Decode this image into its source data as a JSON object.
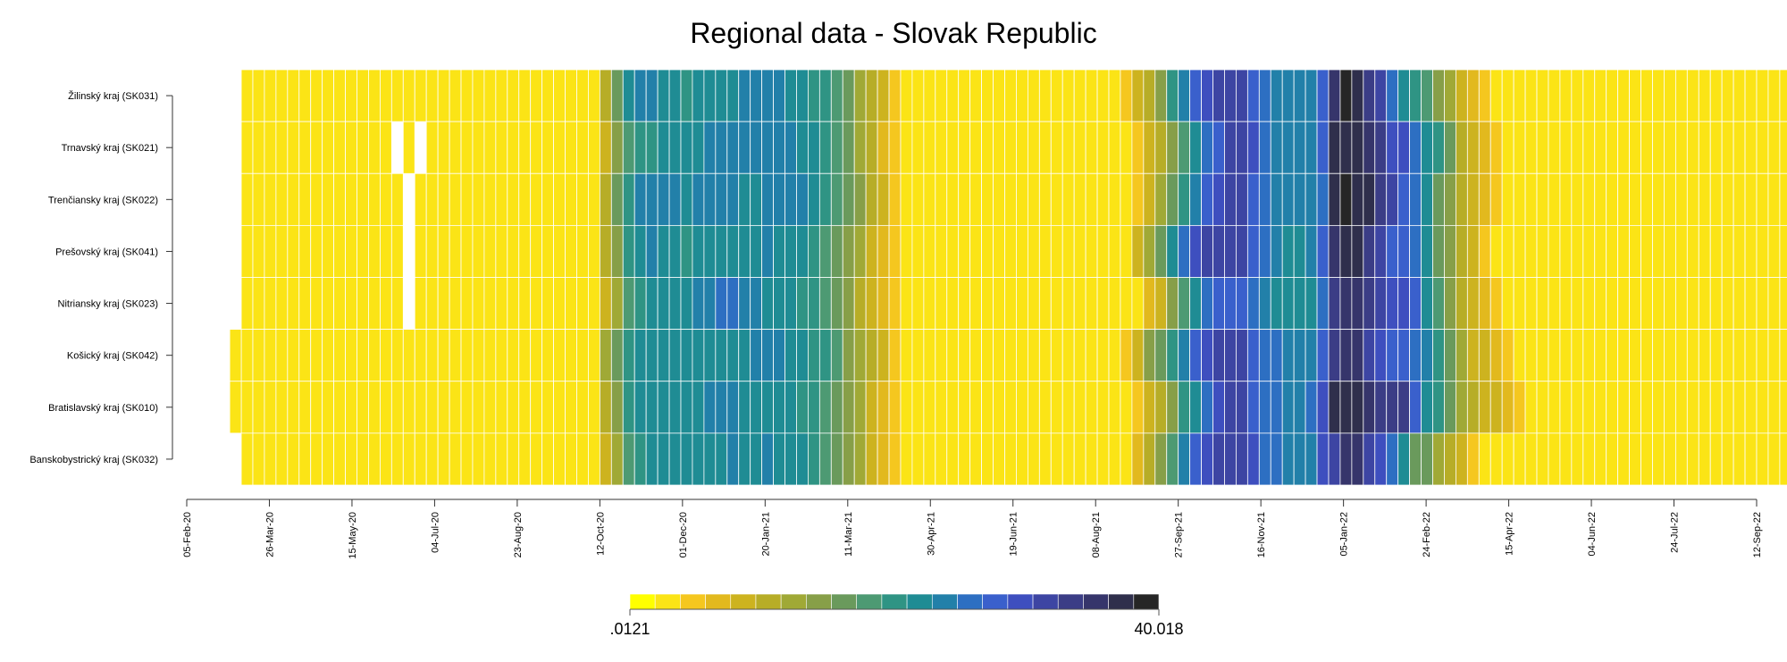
{
  "chart_data": {
    "type": "heatmap",
    "title": "Regional data - Slovak Republic",
    "xlabel": "",
    "ylabel": "",
    "grid": false,
    "legend_position": "bottom",
    "rows": [
      "Žilinský kraj (SK031)",
      "Trnavský kraj (SK021)",
      "Trenčiansky kraj (SK022)",
      "Prešovský kraj (SK041)",
      "Nitriansky kraj (SK023)",
      "Košický kraj (SK042)",
      "Bratislavský kraj (SK010)",
      "Banskobystrický kraj (SK032)"
    ],
    "x_tick_labels": [
      "05-Feb-20",
      "26-Mar-20",
      "15-May-20",
      "04-Jul-20",
      "23-Aug-20",
      "12-Oct-20",
      "01-Dec-20",
      "20-Jan-21",
      "11-Mar-21",
      "30-Apr-21",
      "19-Jun-21",
      "08-Aug-21",
      "27-Sep-21",
      "16-Nov-21",
      "05-Jan-22",
      "24-Feb-22",
      "15-Apr-22",
      "04-Jun-22",
      "24-Jul-22",
      "12-Sep-22"
    ],
    "x_start": "2020-02-05",
    "x_end": "2022-09-12",
    "cell_width_days": 7,
    "first_week_start": "2020-03-09",
    "first_week_start_by_row": {
      "Košický kraj (SK042)": "2020-03-02",
      "Bratislavský kraj (SK010)": "2020-03-02"
    },
    "missing_cells": [
      {
        "row": "Trnavský kraj (SK021)",
        "week_start": "2020-06-08"
      },
      {
        "row": "Trnavský kraj (SK021)",
        "week_start": "2020-06-22"
      },
      {
        "row": "Trenčiansky kraj (SK022)",
        "week_start": "2020-06-15"
      },
      {
        "row": "Prešovský kraj (SK041)",
        "week_start": "2020-06-15"
      },
      {
        "row": "Nitriansky kraj (SK023)",
        "week_start": "2020-06-15"
      }
    ],
    "color_scale": {
      "min_label": ".0121",
      "max_label": "40.018",
      "min": 0.0121,
      "max": 40.018,
      "colors": [
        "#ffff00",
        "#fbe416",
        "#f5c71f",
        "#e2b91e",
        "#cdb31f",
        "#b7ad27",
        "#a0a936",
        "#879f48",
        "#6a9a5c",
        "#4d9a73",
        "#2f9484",
        "#1f8c94",
        "#2280a9",
        "#2d6fc2",
        "#3a60cc",
        "#3e4fbf",
        "#3d45a3",
        "#3b3d86",
        "#36356b",
        "#2f2f4c",
        "#262626"
      ]
    },
    "values_by_week": [
      [
        0.02,
        0.02,
        0.02,
        0.02,
        0.02,
        0.02,
        0.02,
        0.02
      ],
      [
        0.02,
        0.02,
        0.02,
        0.02,
        0.02,
        0.02,
        0.02,
        0.02
      ],
      [
        0.02,
        0.02,
        0.02,
        0.02,
        0.02,
        0.02,
        0.02,
        0.02
      ],
      [
        0.02,
        0.02,
        0.02,
        0.02,
        0.02,
        0.02,
        0.02,
        0.02
      ],
      [
        0.02,
        0.02,
        0.02,
        0.02,
        0.02,
        0.02,
        0.02,
        0.02
      ],
      [
        0.02,
        0.02,
        0.02,
        0.02,
        0.02,
        0.02,
        0.02,
        0.02
      ],
      [
        0.02,
        0.02,
        0.02,
        0.02,
        0.02,
        0.02,
        0.02,
        0.02
      ],
      [
        0.02,
        0.02,
        0.02,
        0.02,
        0.02,
        0.02,
        0.02,
        0.02
      ],
      [
        0.02,
        0.02,
        0.02,
        0.02,
        0.02,
        0.02,
        0.02,
        0.02
      ],
      [
        0.02,
        0.02,
        0.02,
        0.02,
        0.02,
        0.02,
        0.02,
        0.02
      ],
      [
        0.02,
        0.02,
        0.02,
        0.02,
        0.02,
        0.02,
        0.02,
        0.02
      ],
      [
        0.02,
        0.02,
        0.02,
        0.02,
        0.02,
        0.02,
        0.02,
        0.02
      ],
      [
        0.02,
        0.02,
        0.02,
        0.02,
        0.02,
        0.02,
        0.02,
        0.02
      ],
      [
        0.02,
        0.02,
        0.02,
        0.02,
        0.02,
        0.02,
        0.02,
        0.02
      ],
      [
        0.02,
        0.02,
        0.02,
        0.02,
        0.02,
        0.02,
        0.02,
        0.02
      ],
      [
        0.02,
        0.02,
        0.02,
        0.02,
        0.02,
        0.02,
        0.02,
        0.02
      ],
      [
        0.02,
        0.02,
        0.02,
        0.02,
        0.02,
        0.02,
        0.02,
        0.02
      ],
      [
        0.02,
        0.02,
        0.02,
        0.02,
        0.02,
        0.02,
        0.02,
        0.02
      ],
      [
        0.02,
        0.02,
        0.02,
        0.02,
        0.02,
        0.02,
        0.02,
        0.02
      ],
      [
        0.02,
        0.02,
        0.02,
        0.02,
        0.02,
        0.02,
        0.02,
        0.02
      ],
      [
        0.02,
        0.02,
        0.02,
        0.02,
        0.02,
        0.02,
        0.02,
        0.02
      ],
      [
        0.02,
        0.02,
        0.02,
        0.02,
        0.02,
        0.02,
        0.02,
        0.02
      ],
      [
        0.02,
        0.02,
        0.02,
        0.02,
        0.02,
        0.02,
        0.02,
        0.02
      ],
      [
        0.02,
        0.02,
        0.02,
        0.02,
        0.02,
        0.02,
        0.02,
        0.02
      ],
      [
        0.02,
        0.02,
        0.02,
        0.02,
        0.02,
        0.02,
        0.02,
        0.02
      ],
      [
        0.02,
        0.02,
        0.02,
        0.02,
        0.02,
        0.02,
        0.02,
        0.02
      ],
      [
        0.02,
        0.02,
        0.02,
        0.02,
        0.02,
        0.02,
        0.02,
        0.02
      ],
      [
        0.02,
        0.02,
        0.02,
        0.02,
        0.02,
        0.02,
        0.02,
        0.02
      ],
      [
        0.02,
        0.02,
        0.02,
        0.02,
        0.02,
        0.02,
        0.02,
        0.02
      ],
      [
        0.02,
        0.02,
        0.02,
        0.02,
        0.02,
        0.02,
        0.02,
        0.02
      ],
      [
        0.02,
        0.02,
        0.02,
        0.02,
        0.02,
        0.02,
        0.02,
        0.02
      ],
      [
        0.09,
        0.06,
        0.11,
        0.11,
        0.06,
        0.13,
        0.08,
        0.06
      ],
      [
        0.32,
        0.17,
        0.29,
        0.25,
        0.13,
        0.26,
        0.19,
        0.16
      ],
      [
        1.08,
        0.39,
        0.72,
        0.6,
        0.43,
        0.65,
        0.6,
        0.51
      ],
      [
        1.88,
        0.7,
        1.29,
        1.24,
        0.67,
        1.0,
        0.96,
        0.82
      ],
      [
        1.8,
        0.85,
        1.39,
        1.35,
        0.87,
        1.23,
        1.05,
        0.91
      ],
      [
        1.24,
        1.03,
        1.35,
        1.12,
        1.0,
        1.24,
        1.0,
        0.99
      ],
      [
        0.98,
        1.1,
        1.31,
        1.02,
        0.89,
        1.16,
        1.1,
        1.12
      ],
      [
        0.82,
        1.05,
        1.18,
        0.85,
        0.96,
        1.02,
        1.04,
        1.03
      ],
      [
        0.96,
        1.15,
        1.38,
        0.91,
        1.37,
        1.04,
        1.06,
        1.08
      ],
      [
        1.16,
        1.35,
        1.61,
        1.0,
        1.82,
        1.06,
        1.31,
        1.16
      ],
      [
        1.19,
        1.41,
        1.55,
        1.04,
        1.94,
        1.12,
        1.52,
        1.26
      ],
      [
        1.21,
        1.59,
        1.3,
        1.17,
        1.97,
        1.19,
        1.41,
        1.28
      ],
      [
        1.28,
        1.7,
        1.18,
        1.2,
        1.66,
        1.21,
        1.2,
        1.2
      ],
      [
        1.39,
        1.76,
        1.27,
        1.25,
        1.34,
        1.37,
        1.12,
        1.25
      ],
      [
        1.46,
        1.73,
        1.42,
        1.28,
        1.18,
        1.43,
        1.1,
        1.3
      ],
      [
        1.42,
        1.6,
        1.64,
        1.22,
        1.07,
        1.37,
        1.08,
        1.26
      ],
      [
        1.27,
        1.45,
        1.72,
        1.1,
        0.99,
        1.19,
        0.98,
        1.12
      ],
      [
        1.06,
        1.17,
        1.58,
        0.93,
        0.82,
        0.96,
        0.81,
        0.93
      ],
      [
        0.84,
        0.9,
        1.21,
        0.72,
        0.6,
        0.75,
        0.64,
        0.71
      ],
      [
        0.62,
        0.64,
        0.82,
        0.51,
        0.43,
        0.57,
        0.47,
        0.52
      ],
      [
        0.42,
        0.42,
        0.52,
        0.35,
        0.3,
        0.38,
        0.33,
        0.36
      ],
      [
        0.27,
        0.26,
        0.31,
        0.22,
        0.19,
        0.24,
        0.2,
        0.22
      ],
      [
        0.16,
        0.14,
        0.18,
        0.13,
        0.11,
        0.14,
        0.12,
        0.13
      ],
      [
        0.09,
        0.08,
        0.1,
        0.07,
        0.06,
        0.08,
        0.07,
        0.07
      ],
      [
        0.05,
        0.04,
        0.05,
        0.04,
        0.04,
        0.05,
        0.04,
        0.04
      ],
      [
        0.03,
        0.03,
        0.03,
        0.03,
        0.03,
        0.03,
        0.03,
        0.03
      ],
      [
        0.02,
        0.02,
        0.02,
        0.02,
        0.02,
        0.02,
        0.02,
        0.02
      ],
      [
        0.02,
        0.02,
        0.02,
        0.02,
        0.02,
        0.02,
        0.02,
        0.02
      ],
      [
        0.02,
        0.02,
        0.02,
        0.02,
        0.02,
        0.02,
        0.02,
        0.02
      ],
      [
        0.02,
        0.02,
        0.02,
        0.02,
        0.02,
        0.02,
        0.02,
        0.02
      ],
      [
        0.02,
        0.02,
        0.02,
        0.02,
        0.02,
        0.02,
        0.02,
        0.02
      ],
      [
        0.02,
        0.02,
        0.02,
        0.02,
        0.02,
        0.02,
        0.02,
        0.02
      ],
      [
        0.02,
        0.02,
        0.02,
        0.02,
        0.02,
        0.02,
        0.02,
        0.02
      ],
      [
        0.02,
        0.02,
        0.02,
        0.02,
        0.02,
        0.02,
        0.02,
        0.02
      ],
      [
        0.02,
        0.02,
        0.02,
        0.02,
        0.02,
        0.02,
        0.02,
        0.02
      ],
      [
        0.02,
        0.02,
        0.02,
        0.02,
        0.02,
        0.02,
        0.02,
        0.02
      ],
      [
        0.02,
        0.02,
        0.02,
        0.02,
        0.02,
        0.02,
        0.02,
        0.02
      ],
      [
        0.02,
        0.02,
        0.02,
        0.02,
        0.02,
        0.02,
        0.02,
        0.02
      ],
      [
        0.02,
        0.02,
        0.02,
        0.02,
        0.02,
        0.02,
        0.02,
        0.02
      ],
      [
        0.02,
        0.02,
        0.02,
        0.02,
        0.02,
        0.02,
        0.02,
        0.02
      ],
      [
        0.02,
        0.02,
        0.02,
        0.02,
        0.02,
        0.02,
        0.02,
        0.02
      ],
      [
        0.02,
        0.02,
        0.02,
        0.02,
        0.02,
        0.02,
        0.02,
        0.02
      ],
      [
        0.02,
        0.02,
        0.02,
        0.02,
        0.02,
        0.02,
        0.02,
        0.02
      ],
      [
        0.02,
        0.02,
        0.02,
        0.02,
        0.02,
        0.02,
        0.02,
        0.02
      ],
      [
        0.02,
        0.02,
        0.02,
        0.02,
        0.02,
        0.02,
        0.02,
        0.02
      ],
      [
        0.03,
        0.02,
        0.02,
        0.02,
        0.02,
        0.03,
        0.02,
        0.02
      ],
      [
        0.05,
        0.03,
        0.03,
        0.06,
        0.02,
        0.07,
        0.03,
        0.04
      ],
      [
        0.1,
        0.05,
        0.06,
        0.15,
        0.04,
        0.17,
        0.05,
        0.08
      ],
      [
        0.23,
        0.09,
        0.13,
        0.37,
        0.06,
        0.36,
        0.1,
        0.19
      ],
      [
        0.58,
        0.22,
        0.34,
        1.01,
        0.17,
        0.84,
        0.24,
        0.54
      ],
      [
        1.41,
        0.54,
        0.81,
        2.49,
        0.43,
        1.85,
        0.57,
        1.37
      ],
      [
        3.01,
        1.19,
        1.63,
        4.41,
        1.05,
        3.39,
        1.24,
        3.03
      ],
      [
        5.01,
        2.31,
        3.1,
        6.52,
        2.01,
        5.06,
        2.55,
        5.05
      ],
      [
        6.8,
        4.3,
        5.71,
        8.06,
        3.04,
        6.65,
        5.48,
        6.8
      ],
      [
        7.9,
        7.22,
        8.1,
        8.39,
        3.52,
        7.4,
        8.41,
        7.78
      ],
      [
        7.0,
        9.03,
        8.04,
        7.53,
        3.36,
        6.8,
        8.34,
        7.2
      ],
      [
        3.6,
        4.91,
        3.58,
        4.02,
        2.0,
        3.91,
        3.99,
        4.39
      ],
      [
        2.1,
        2.71,
        2.14,
        2.18,
        1.44,
        2.57,
        2.59,
        2.79
      ],
      [
        1.54,
        1.81,
        1.66,
        1.32,
        1.11,
        2.09,
        1.98,
        2.0
      ],
      [
        1.48,
        1.55,
        1.55,
        1.02,
        0.99,
        1.69,
        1.65,
        1.61
      ],
      [
        1.41,
        1.51,
        1.47,
        1.02,
        0.98,
        1.47,
        1.53,
        1.41
      ],
      [
        1.73,
        1.91,
        1.81,
        1.53,
        1.24,
        1.88,
        1.94,
        1.79
      ],
      [
        4.24,
        4.18,
        2.8,
        3.05,
        2.4,
        3.51,
        5.4,
        4.48
      ],
      [
        16.52,
        22.6,
        22.6,
        21.3,
        11.04,
        11.96,
        27.73,
        9.58
      ],
      [
        38.14,
        30.57,
        40.02,
        24.01,
        18.3,
        18.16,
        29.27,
        21.14
      ],
      [
        22.63,
        30.06,
        28.17,
        24.67,
        15.23,
        14.96,
        23.31,
        14.84
      ],
      [
        10.72,
        17.54,
        22.68,
        12.05,
        12.44,
        9.04,
        17.26,
        8.36
      ],
      [
        7.56,
        11.64,
        10.75,
        6.52,
        8.6,
        6.25,
        12.25,
        5.04
      ],
      [
        2.12,
        5.66,
        7.66,
        4.08,
        5.82,
        4.22,
        13.04,
        2.43
      ],
      [
        1.21,
        4.31,
        4.17,
        3.33,
        4.7,
        3.31,
        12.79,
        1.08
      ],
      [
        0.74,
        2.79,
        2.32,
        2.29,
        3.79,
        2.29,
        4.29,
        0.36
      ],
      [
        0.4,
        1.18,
        0.87,
        1.18,
        0.94,
        1.34,
        1.23,
        0.26
      ],
      [
        0.22,
        0.58,
        0.37,
        0.32,
        0.4,
        0.64,
        0.58,
        0.15
      ],
      [
        0.12,
        0.26,
        0.2,
        0.18,
        0.22,
        0.32,
        0.28,
        0.08
      ],
      [
        0.07,
        0.11,
        0.09,
        0.09,
        0.11,
        0.13,
        0.13,
        0.05
      ],
      [
        0.04,
        0.06,
        0.06,
        0.05,
        0.06,
        0.07,
        0.08,
        0.03
      ],
      [
        0.03,
        0.04,
        0.04,
        0.03,
        0.04,
        0.05,
        0.06,
        0.02
      ],
      [
        0.02,
        0.03,
        0.03,
        0.02,
        0.03,
        0.04,
        0.05,
        0.02
      ],
      [
        0.02,
        0.02,
        0.02,
        0.02,
        0.02,
        0.03,
        0.04,
        0.02
      ],
      [
        0.02,
        0.02,
        0.02,
        0.02,
        0.02,
        0.02,
        0.03,
        0.02
      ],
      [
        0.02,
        0.02,
        0.02,
        0.02,
        0.02,
        0.02,
        0.02,
        0.02
      ],
      [
        0.02,
        0.02,
        0.02,
        0.02,
        0.02,
        0.02,
        0.02,
        0.02
      ],
      [
        0.02,
        0.02,
        0.02,
        0.02,
        0.02,
        0.02,
        0.02,
        0.02
      ],
      [
        0.02,
        0.02,
        0.02,
        0.02,
        0.02,
        0.02,
        0.02,
        0.02
      ],
      [
        0.02,
        0.02,
        0.02,
        0.02,
        0.02,
        0.02,
        0.02,
        0.02
      ],
      [
        0.02,
        0.02,
        0.02,
        0.02,
        0.02,
        0.02,
        0.02,
        0.02
      ],
      [
        0.02,
        0.02,
        0.02,
        0.02,
        0.02,
        0.02,
        0.02,
        0.02
      ],
      [
        0.02,
        0.02,
        0.02,
        0.02,
        0.02,
        0.02,
        0.02,
        0.02
      ],
      [
        0.02,
        0.02,
        0.02,
        0.02,
        0.02,
        0.02,
        0.02,
        0.02
      ],
      [
        0.02,
        0.02,
        0.02,
        0.02,
        0.02,
        0.02,
        0.02,
        0.02
      ],
      [
        0.02,
        0.02,
        0.02,
        0.02,
        0.02,
        0.02,
        0.02,
        0.02
      ],
      [
        0.02,
        0.02,
        0.02,
        0.02,
        0.02,
        0.02,
        0.02,
        0.02
      ],
      [
        0.02,
        0.02,
        0.02,
        0.02,
        0.02,
        0.02,
        0.02,
        0.02
      ],
      [
        0.02,
        0.02,
        0.02,
        0.02,
        0.02,
        0.02,
        0.02,
        0.02
      ],
      [
        0.02,
        0.02,
        0.02,
        0.02,
        0.02,
        0.02,
        0.02,
        0.02
      ],
      [
        0.02,
        0.02,
        0.02,
        0.02,
        0.02,
        0.02,
        0.02,
        0.02
      ],
      [
        0.02,
        0.02,
        0.02,
        0.02,
        0.02,
        0.02,
        0.02,
        0.02
      ],
      [
        0.02,
        0.02,
        0.02,
        0.02,
        0.02,
        0.02,
        0.02,
        0.02
      ],
      [
        0.02,
        0.02,
        0.02,
        0.02,
        0.02,
        0.02,
        0.02,
        0.02
      ],
      [
        0.02,
        0.02,
        0.02,
        0.02,
        0.02,
        0.02,
        0.02,
        0.02
      ],
      [
        0.02,
        0.02,
        0.02,
        0.02,
        0.02,
        0.02,
        0.02,
        0.02
      ],
      [
        0.02,
        0.02,
        0.02,
        0.02,
        0.02,
        0.02,
        0.02,
        0.02
      ],
      [
        0.02,
        0.02,
        0.02,
        0.02,
        0.02,
        0.02,
        0.02,
        0.02
      ]
    ]
  }
}
